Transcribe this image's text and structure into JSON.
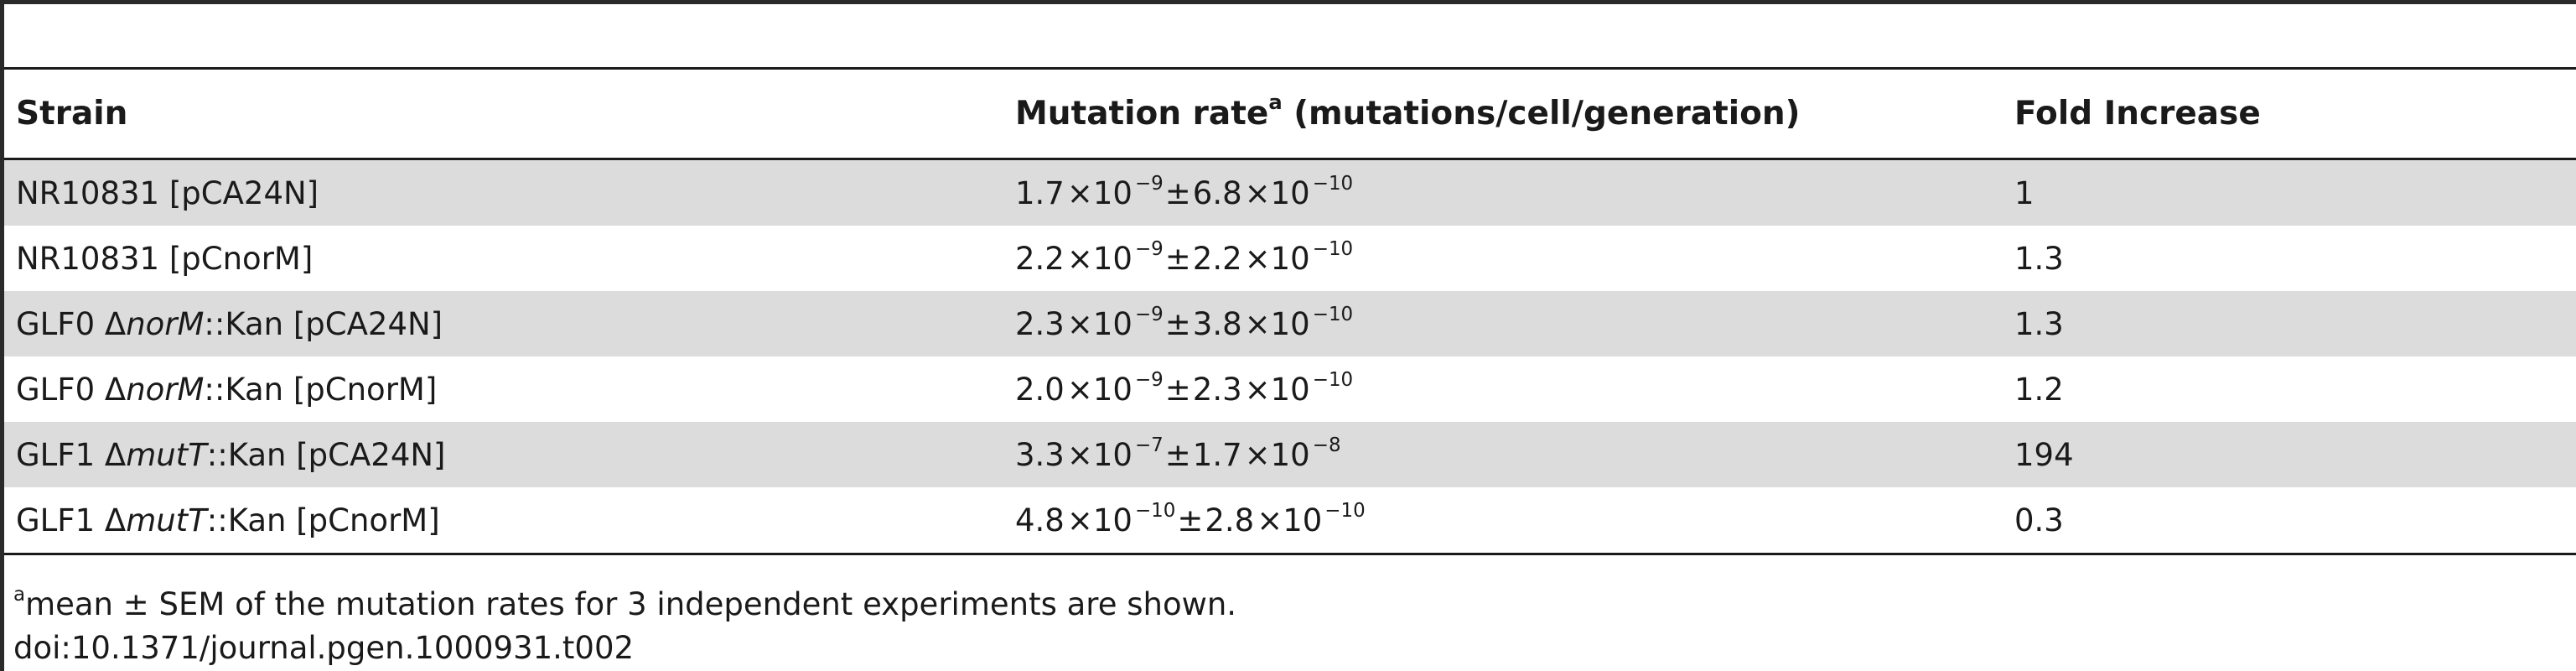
{
  "headers": {
    "strain": "Strain",
    "mutation_rate": "Mutation rate",
    "mutation_rate_sup": "a",
    "mutation_rate_unit": " (mutations/cell/generation)",
    "fold": "Fold Increase"
  },
  "rows": [
    {
      "strain_prefix": "NR10831 [pCA24N]",
      "strain_gene": "",
      "strain_suffix": "",
      "mantissa1": "1.7",
      "exp1": "−9",
      "mantissa2": "6.8",
      "exp2": "−10",
      "fold": "1"
    },
    {
      "strain_prefix": "NR10831 [pCnorM]",
      "strain_gene": "",
      "strain_suffix": "",
      "mantissa1": "2.2",
      "exp1": "−9",
      "mantissa2": "2.2",
      "exp2": "−10",
      "fold": "1.3"
    },
    {
      "strain_prefix": "GLF0 Δ",
      "strain_gene": "norM",
      "strain_suffix": "::Kan [pCA24N]",
      "mantissa1": "2.3",
      "exp1": "−9",
      "mantissa2": "3.8",
      "exp2": "−10",
      "fold": "1.3"
    },
    {
      "strain_prefix": "GLF0 Δ",
      "strain_gene": "norM",
      "strain_suffix": "::Kan [pCnorM]",
      "mantissa1": "2.0",
      "exp1": "−9",
      "mantissa2": "2.3",
      "exp2": "−10",
      "fold": "1.2"
    },
    {
      "strain_prefix": "GLF1 Δ",
      "strain_gene": "mutT",
      "strain_suffix": "::Kan [pCA24N]",
      "mantissa1": "3.3",
      "exp1": "−7",
      "mantissa2": "1.7",
      "exp2": "−8",
      "fold": "194"
    },
    {
      "strain_prefix": "GLF1 Δ",
      "strain_gene": "mutT",
      "strain_suffix": "::Kan [pCnorM]",
      "mantissa1": "4.8",
      "exp1": "−10",
      "mantissa2": "2.8",
      "exp2": "−10",
      "fold": "0.3"
    }
  ],
  "symbols": {
    "times": "×10",
    "pm": "±"
  },
  "footnote": {
    "sup": "a",
    "text": "mean ± SEM of the mutation rates for 3 independent experiments are shown.",
    "doi": "doi:10.1371/journal.pgen.1000931.t002"
  }
}
